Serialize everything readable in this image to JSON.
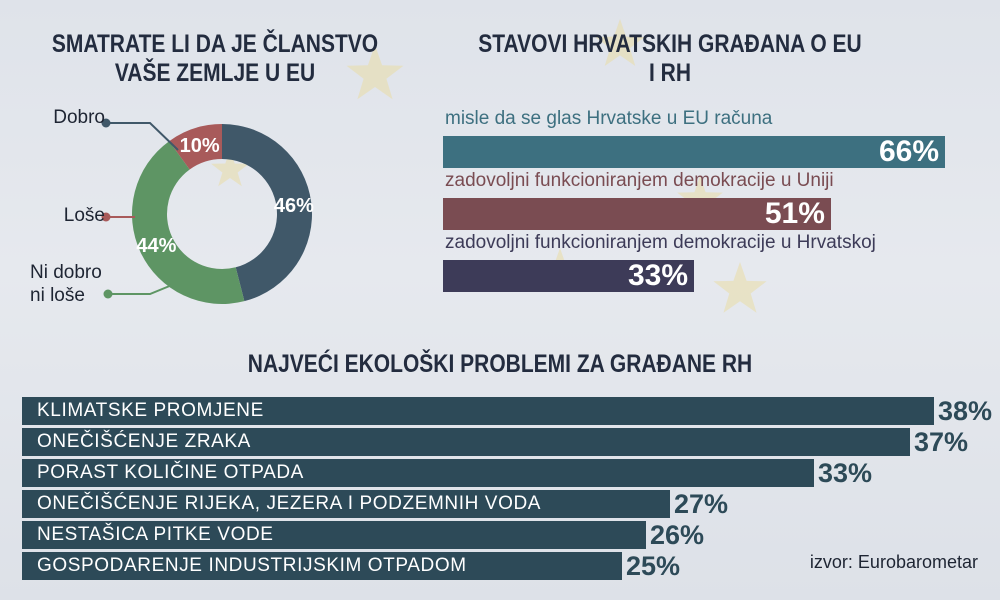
{
  "colors": {
    "navy": "#232c3f",
    "donut_good": "#405869",
    "donut_bad": "#a85a5a",
    "donut_neutral": "#5e9564",
    "bar_teal": "#3d7080",
    "bar_maroon": "#7a4c52",
    "bar_indigo": "#3d3b58",
    "eco_bar": "#2d4a58",
    "star": "#e9dca6"
  },
  "titles": {
    "membership": "SMATRATE LI DA JE ČLANSTVO VAŠE ZEMLJE U EU",
    "attitudes": "STAVOVI HRVATSKIH GRAĐANA O EU I RH",
    "eco": "NAJVEĆI EKOLOŠKI PROBLEMI ZA GRAĐANE RH"
  },
  "chart_data": [
    {
      "type": "pie",
      "title": "SMATRATE LI DA JE ČLANSTVO VAŠE ZEMLJE U EU",
      "slices": [
        {
          "label": "Dobro",
          "value": 46,
          "display": "46%",
          "color": "#405869"
        },
        {
          "label": "Ni dobro ni loše",
          "value": 44,
          "display": "44%",
          "color": "#5e9564"
        },
        {
          "label": "Loše",
          "value": 10,
          "display": "10%",
          "color": "#a85a5a"
        }
      ]
    },
    {
      "type": "bar",
      "orientation": "horizontal",
      "title": "STAVOVI HRVATSKIH GRAĐANA O EU I RH",
      "categories": [
        "misle da se glas Hrvatske u EU računa",
        "zadovoljni funkcioniranjem demokracije u Uniji",
        "zadovoljni funkcioniranjem demokracije u Hrvatskoj"
      ],
      "values": [
        66,
        51,
        33
      ],
      "value_labels": [
        "66%",
        "51%",
        "33%"
      ],
      "colors": [
        "#3d7080",
        "#7a4c52",
        "#3d3b58"
      ],
      "xlim": [
        0,
        66
      ]
    },
    {
      "type": "bar",
      "orientation": "horizontal",
      "title": "NAJVEĆI EKOLOŠKI PROBLEMI ZA GRAĐANE RH",
      "categories": [
        "KLIMATSKE PROMJENE",
        "ONEČIŠĆENJE ZRAKA",
        "PORAST KOLIČINE OTPADA",
        "ONEČIŠĆENJE RIJEKA, JEZERA I PODZEMNIH VODA",
        "NESTAŠICA PITKE VODE",
        "GOSPODARENJE INDUSTRIJSKIM OTPADOM"
      ],
      "values": [
        38,
        37,
        33,
        27,
        26,
        25
      ],
      "value_labels": [
        "38%",
        "37%",
        "33%",
        "27%",
        "26%",
        "25%"
      ],
      "xlim": [
        0,
        38
      ]
    }
  ],
  "source": "izvor: Eurobarometar"
}
